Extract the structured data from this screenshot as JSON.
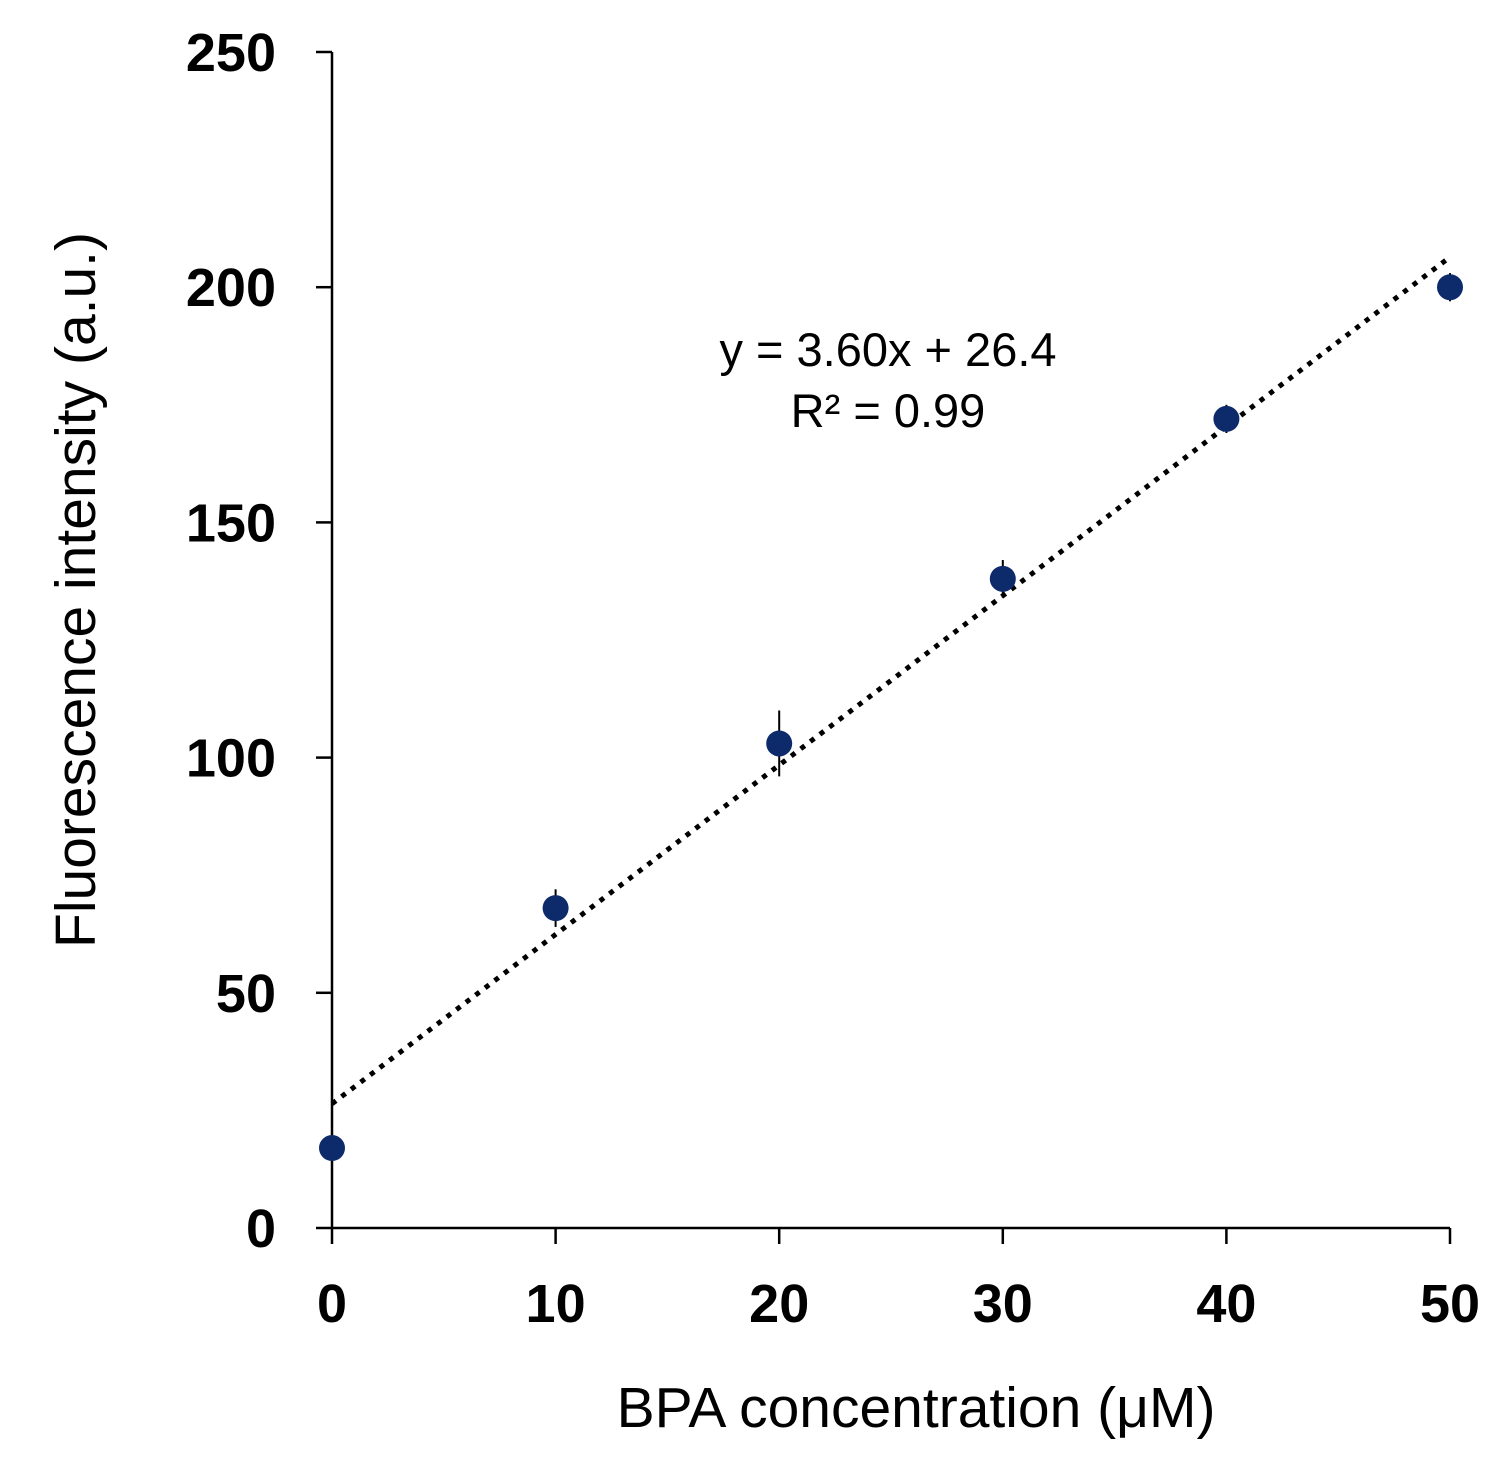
{
  "chart_data": {
    "type": "scatter",
    "title": "",
    "xlabel": "BPA concentration (μM)",
    "ylabel": "Fluorescence intensity (a.u.)",
    "xlim": [
      0,
      50
    ],
    "ylim": [
      0,
      250
    ],
    "xticks": [
      "0",
      "10",
      "20",
      "30",
      "40",
      "50"
    ],
    "yticks": [
      "0",
      "50",
      "100",
      "150",
      "200",
      "250"
    ],
    "grid": false,
    "legend": "none",
    "marker_color": "#0d2a6b",
    "series": [
      {
        "name": "BPA",
        "x": [
          0,
          10,
          20,
          30,
          40,
          50
        ],
        "y": [
          17,
          68,
          103,
          138,
          172,
          200
        ],
        "error": [
          1,
          4,
          7,
          4,
          3,
          3
        ]
      }
    ],
    "trendline": {
      "style": "dotted",
      "slope": 3.6,
      "intercept": 26.4,
      "equation": "y = 3.60x + 26.4",
      "r_squared": "R² = 0.99"
    }
  }
}
